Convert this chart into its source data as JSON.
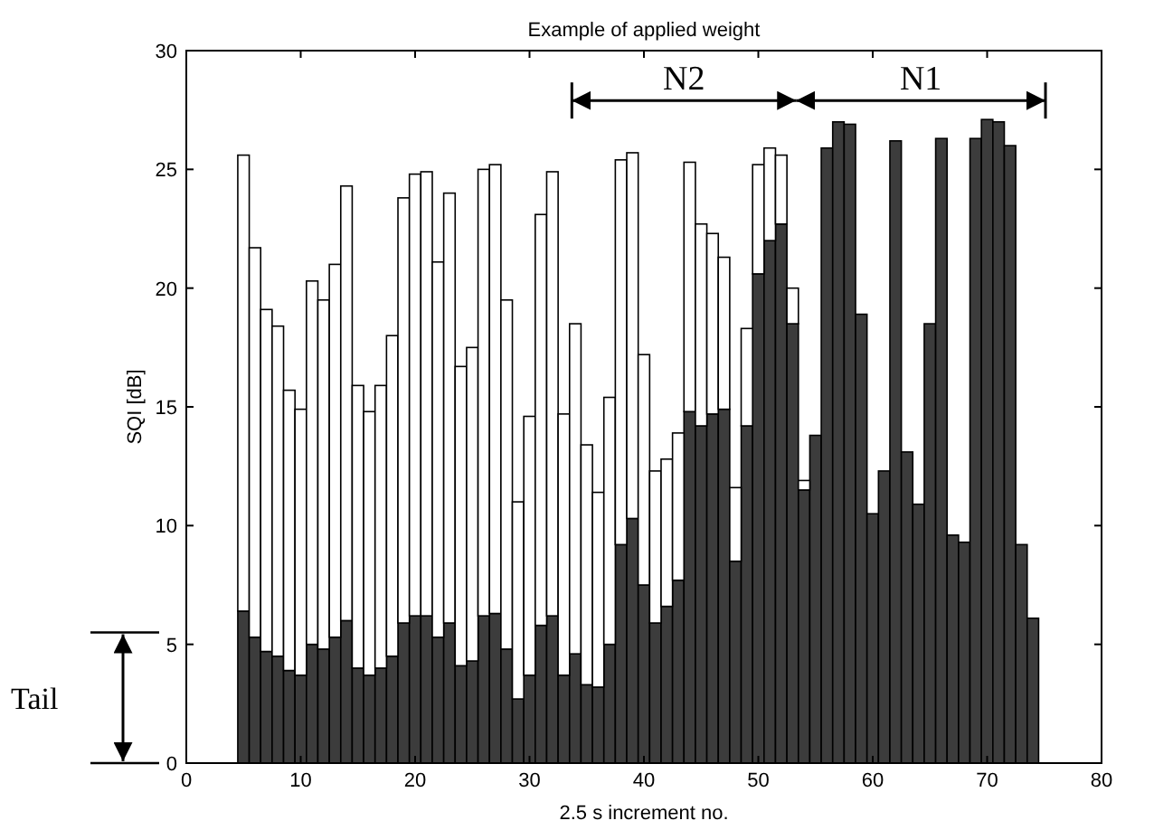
{
  "chart_data": {
    "type": "bar",
    "stacked": true,
    "title": "Example of applied weight",
    "xlabel": "2.5 s increment no.",
    "ylabel": "SQI [dB]",
    "x": [
      5,
      6,
      7,
      8,
      9,
      10,
      11,
      12,
      13,
      14,
      15,
      16,
      17,
      18,
      19,
      20,
      21,
      22,
      23,
      24,
      25,
      26,
      27,
      28,
      29,
      30,
      31,
      32,
      33,
      34,
      35,
      36,
      37,
      38,
      39,
      40,
      41,
      42,
      43,
      44,
      45,
      46,
      47,
      48,
      49,
      50,
      51,
      52,
      53,
      54,
      55,
      56,
      57,
      58,
      59,
      60,
      61,
      62,
      63,
      64,
      65,
      66,
      67,
      68,
      69,
      70,
      71,
      72,
      73,
      74
    ],
    "series": [
      {
        "color": "#3c3c3c",
        "values": [
          6.4,
          5.3,
          4.7,
          4.5,
          3.9,
          3.7,
          5.0,
          4.8,
          5.3,
          6.0,
          4.0,
          3.7,
          4.0,
          4.5,
          5.9,
          6.2,
          6.2,
          5.3,
          5.9,
          4.1,
          4.3,
          6.2,
          6.3,
          4.8,
          2.7,
          3.7,
          5.8,
          6.2,
          3.7,
          4.6,
          3.3,
          3.2,
          5.0,
          9.2,
          10.3,
          7.5,
          5.9,
          6.6,
          7.7,
          14.8,
          14.2,
          14.7,
          14.9,
          8.5,
          14.2,
          20.6,
          22.0,
          22.7,
          18.5,
          11.5,
          13.8,
          25.9,
          27.0,
          26.9,
          18.9,
          10.5,
          12.3,
          26.2,
          13.1,
          10.9,
          18.5,
          26.3,
          9.6,
          9.3,
          26.3,
          27.1,
          27.0,
          26.0,
          9.2,
          6.1
        ]
      },
      {
        "color": "#ffffff",
        "values": [
          19.2,
          16.4,
          14.4,
          13.9,
          11.8,
          11.2,
          15.3,
          14.7,
          15.7,
          18.3,
          11.9,
          11.1,
          11.9,
          13.5,
          17.9,
          18.6,
          18.7,
          15.8,
          18.1,
          12.6,
          13.2,
          18.8,
          18.9,
          14.7,
          8.3,
          10.9,
          17.3,
          18.7,
          11.0,
          13.9,
          10.1,
          8.2,
          10.4,
          16.2,
          15.4,
          9.7,
          6.4,
          6.2,
          6.2,
          10.5,
          8.5,
          7.6,
          6.4,
          3.1,
          4.1,
          4.6,
          3.9,
          2.9,
          1.5,
          0.4,
          null,
          null,
          null,
          null,
          null,
          null,
          null,
          null,
          null,
          null,
          null,
          null,
          null,
          null,
          null,
          null,
          null,
          null,
          null,
          null
        ]
      }
    ],
    "xlim": [
      0,
      80
    ],
    "xticks": [
      0,
      10,
      20,
      30,
      40,
      50,
      60,
      70,
      80
    ],
    "ylim": [
      0,
      30
    ],
    "yticks": [
      0,
      5,
      10,
      15,
      20,
      25,
      30
    ],
    "annotations": [
      "N2",
      "N1",
      "Tail"
    ]
  }
}
